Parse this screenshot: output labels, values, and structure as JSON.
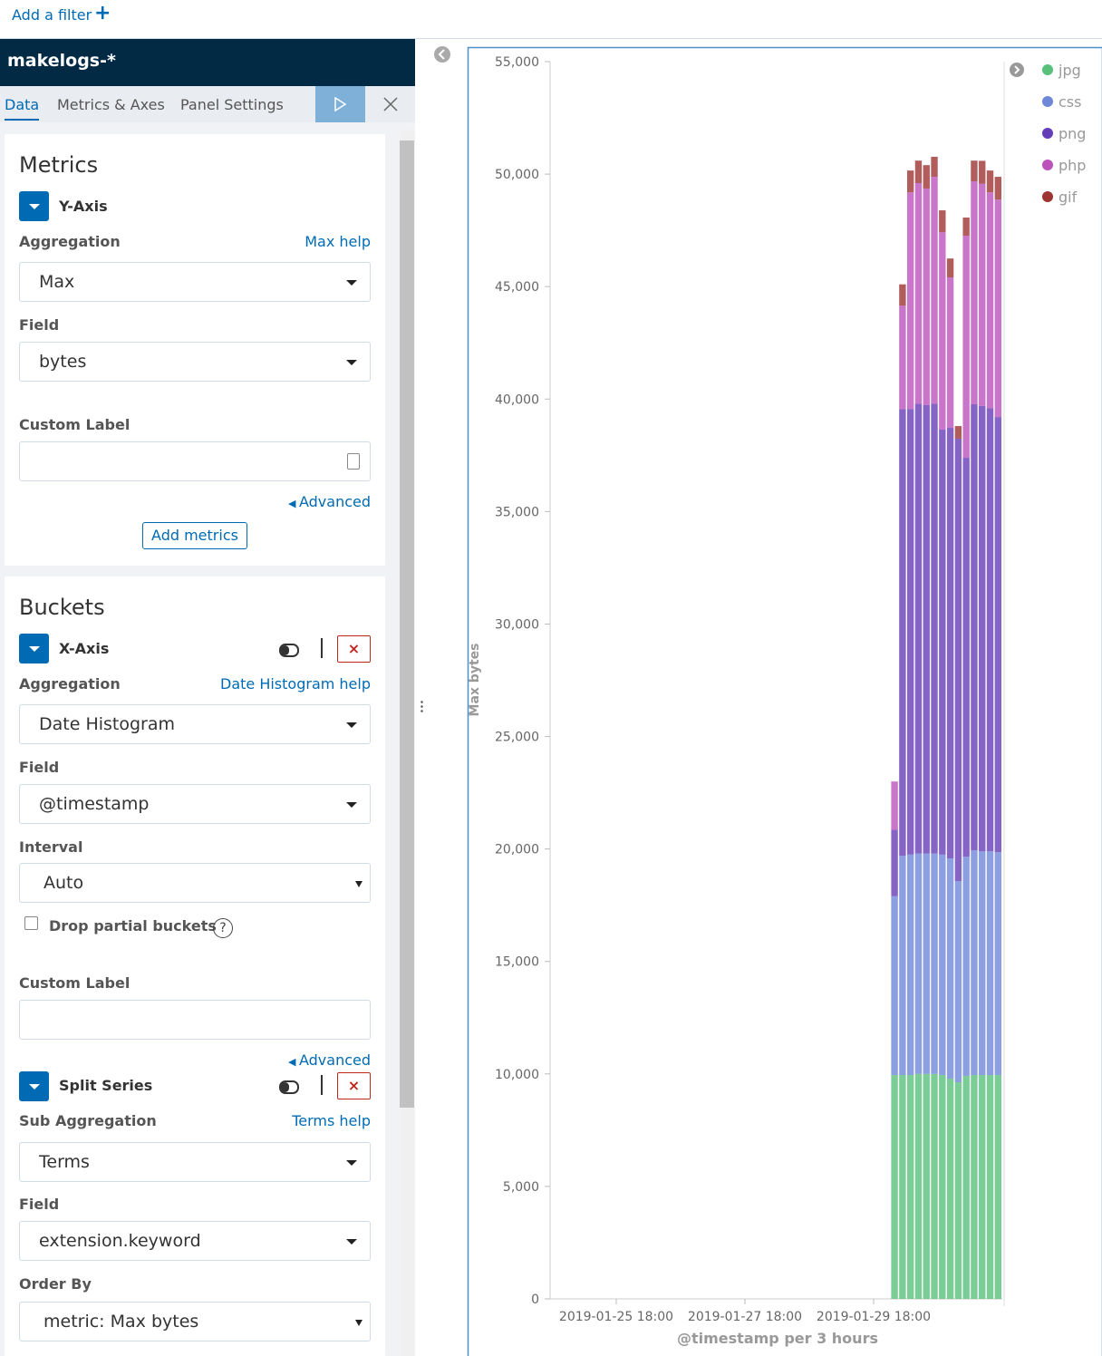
{
  "filter_bar": {
    "add_filter": "Add a filter"
  },
  "sidebar": {
    "index_pattern": "makelogs-*",
    "tabs": [
      "Data",
      "Metrics & Axes",
      "Panel Settings"
    ]
  },
  "metrics": {
    "title": "Metrics",
    "y_axis": {
      "label": "Y-Axis",
      "aggregation_label": "Aggregation",
      "help": "Max help",
      "aggregation": "Max",
      "field_label": "Field",
      "field": "bytes",
      "custom_label": "Custom Label",
      "advanced": "Advanced"
    },
    "add_metrics": "Add metrics"
  },
  "buckets": {
    "title": "Buckets",
    "x_axis": {
      "label": "X-Axis",
      "aggregation_label": "Aggregation",
      "help": "Date Histogram help",
      "aggregation": "Date Histogram",
      "field_label": "Field",
      "field": "@timestamp",
      "interval_label": "Interval",
      "interval": "Auto",
      "drop_partial": "Drop partial buckets",
      "custom_label": "Custom Label",
      "advanced": "Advanced"
    },
    "split_series": {
      "label": "Split Series",
      "aggregation_label": "Sub Aggregation",
      "help": "Terms help",
      "aggregation": "Terms",
      "field_label": "Field",
      "field": "extension.keyword",
      "order_by_label": "Order By",
      "order_by": "metric: Max bytes"
    }
  },
  "chart_data": {
    "type": "stacked_bar",
    "y_label": "Max bytes",
    "x_label": "@timestamp per 3 hours",
    "categories": [
      null,
      null,
      null,
      null,
      null,
      null,
      null,
      null,
      null,
      null,
      null,
      null,
      null,
      null
    ],
    "xticks": [
      "2019-01-25 18:00",
      "2019-01-27 18:00",
      "2019-01-29 18:00"
    ],
    "ylim": [
      0,
      55000
    ],
    "yticks": [
      0,
      {
        "value": 5000,
        "label": "5,000"
      },
      {
        "value": 10000,
        "label": "10,000"
      },
      {
        "value": 15000,
        "label": "15,000"
      },
      {
        "value": 20000,
        "label": "20,000"
      },
      {
        "value": 25000,
        "label": "25,000"
      },
      {
        "value": 30000,
        "label": "30,000"
      },
      {
        "value": 35000,
        "label": "35,000"
      },
      {
        "value": 40000,
        "label": "40,000"
      },
      {
        "value": 45000,
        "label": "45,000"
      },
      {
        "value": 50000,
        "label": "50,000"
      },
      {
        "value": 55000,
        "label": "55,000"
      }
    ],
    "grid": false,
    "legend": "right",
    "series": [
      {
        "name": "jpg",
        "color": "#57c17b",
        "values": [
          9950,
          9950,
          9950,
          10000,
          10000,
          10000,
          9950,
          9790,
          9630,
          9910,
          9950,
          9950,
          9950,
          9950
        ]
      },
      {
        "name": "css",
        "color": "#6f87d8",
        "values": [
          7950,
          9750,
          9800,
          9800,
          9800,
          9800,
          9800,
          9790,
          8940,
          9750,
          9990,
          9950,
          9950,
          9910
        ]
      },
      {
        "name": "png",
        "color": "#663db8",
        "values": [
          2950,
          19850,
          19810,
          20000,
          19930,
          20000,
          18890,
          19140,
          19670,
          17730,
          19830,
          19800,
          19700,
          19340
        ]
      },
      {
        "name": "php",
        "color": "#bc52bc",
        "values": [
          2150,
          4600,
          9630,
          9800,
          9630,
          10080,
          8780,
          6690,
          0,
          9870,
          9910,
          9880,
          9590,
          9670
        ]
      },
      {
        "name": "gif",
        "color": "#9e3533",
        "values": [
          0,
          950,
          970,
          1000,
          1040,
          890,
          970,
          840,
          560,
          810,
          920,
          1010,
          970,
          1010
        ]
      }
    ]
  }
}
